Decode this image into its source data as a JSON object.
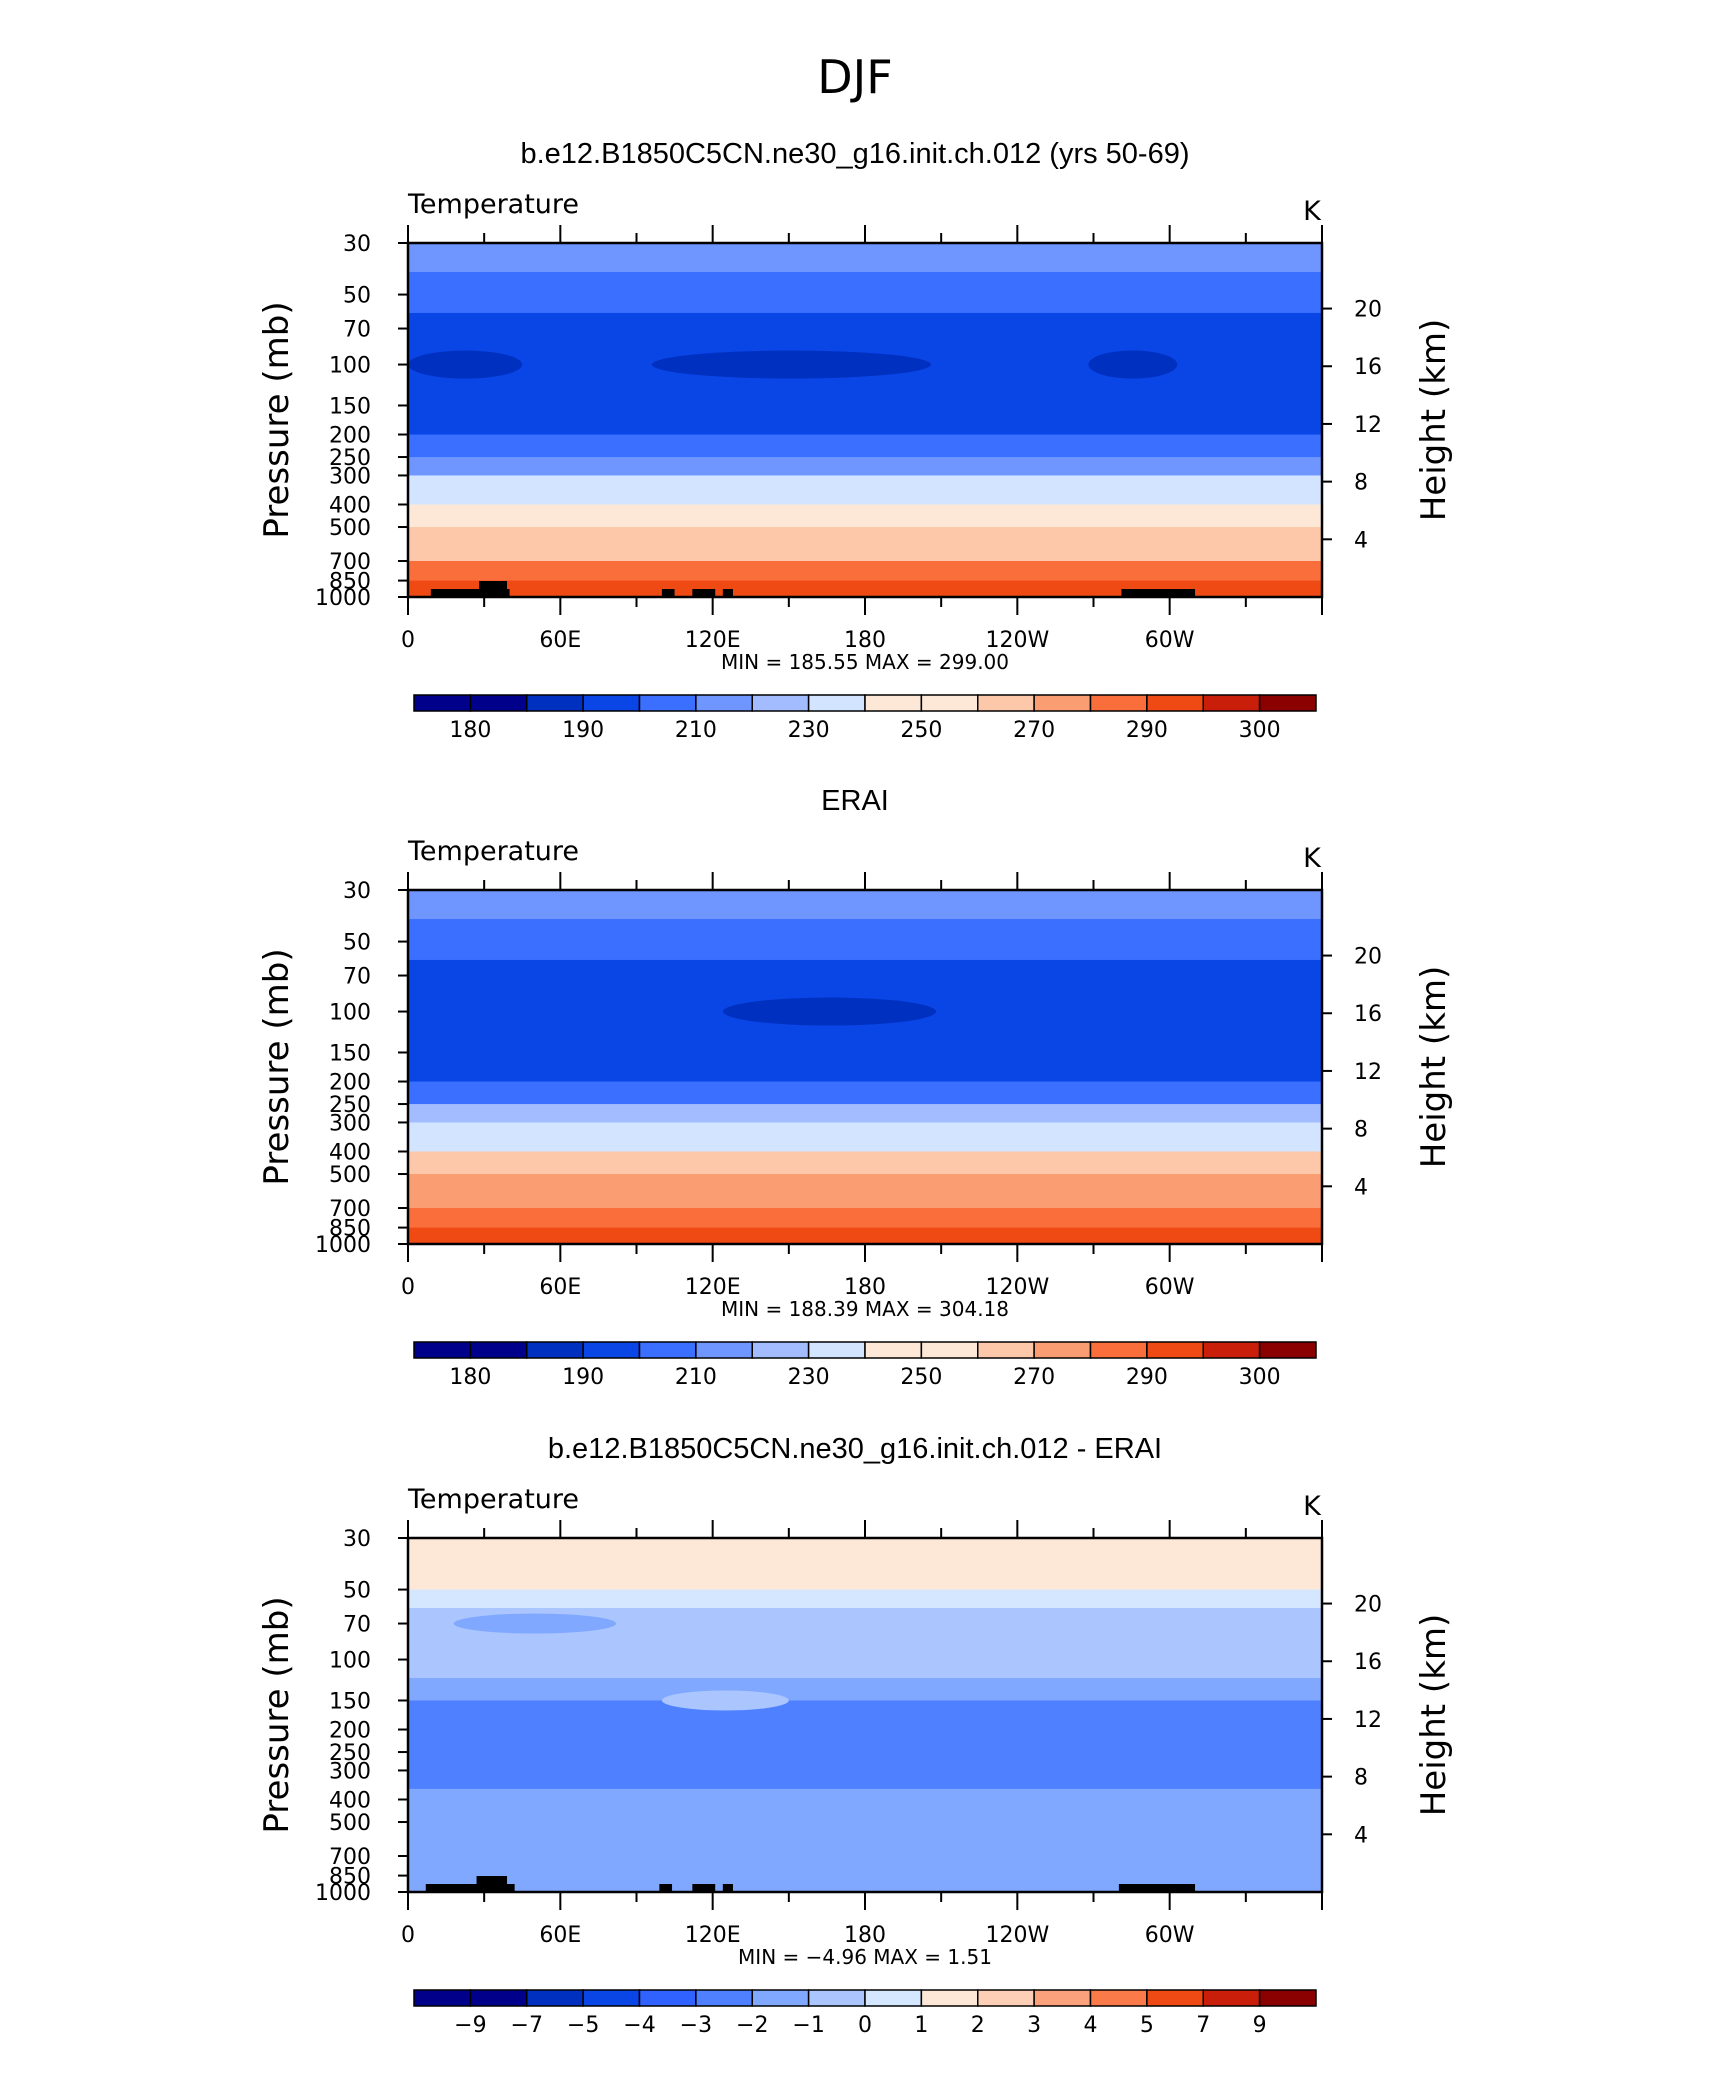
{
  "page_title": "DJF",
  "colors": {
    "temp_scale": [
      "#00008b",
      "#0030c0",
      "#0a45e6",
      "#3a6fff",
      "#6f96ff",
      "#a2bcff",
      "#d2e4ff",
      "#fde8d8",
      "#fdc8aa",
      "#fb9d72",
      "#fa6e3c",
      "#f04a14",
      "#c81e0a",
      "#8b0000"
    ],
    "diff_scale": [
      "#00008b",
      "#0030c0",
      "#0a45e6",
      "#2f62ff",
      "#4f80ff",
      "#81a8ff",
      "#abc6ff",
      "#d5e7ff",
      "#fde8d8",
      "#fccfb6",
      "#fba27c",
      "#fa7a4a",
      "#f04a14",
      "#c81e0a",
      "#8b0000"
    ],
    "terrain": "#000000"
  },
  "chart_data": [
    {
      "type": "heatmap",
      "title": "b.e12.B1850C5CN.ne30_g16.init.ch.012 (yrs 50-69)",
      "left_label": "Temperature",
      "right_label": "K",
      "ylabel": "Pressure (mb)",
      "ylabel2": "Height (km)",
      "x_ticks": [
        "0",
        "60E",
        "120E",
        "180",
        "120W",
        "60W"
      ],
      "x_tick_lon": [
        0,
        60,
        120,
        180,
        240,
        300
      ],
      "xlim": [
        0,
        360
      ],
      "y_ticks": [
        "30",
        "50",
        "70",
        "100",
        "150",
        "200",
        "250",
        "300",
        "400",
        "500",
        "700",
        "850",
        "1000"
      ],
      "y_tick_values": [
        30,
        50,
        70,
        100,
        150,
        200,
        250,
        300,
        400,
        500,
        700,
        850,
        1000
      ],
      "ylim": [
        1000,
        30
      ],
      "y2_ticks": [
        "20",
        "16",
        "12",
        "8",
        "4"
      ],
      "y2_tick_values": [
        20,
        16,
        12,
        8,
        4
      ],
      "stats": "MIN = 185.55   MAX = 299.00",
      "min": 185.55,
      "max": 299.0,
      "colorbar_labels": [
        "180",
        "190",
        "210",
        "230",
        "250",
        "270",
        "290",
        "300"
      ],
      "bands_by_pressure": [
        {
          "p": 30,
          "value": 215
        },
        {
          "p": 40,
          "value": 205
        },
        {
          "p": 60,
          "value": 195
        },
        {
          "p": 100,
          "value": 193
        },
        {
          "p": 150,
          "value": 200
        },
        {
          "p": 200,
          "value": 210
        },
        {
          "p": 250,
          "value": 220
        },
        {
          "p": 300,
          "value": 232
        },
        {
          "p": 400,
          "value": 248
        },
        {
          "p": 500,
          "value": 258
        },
        {
          "p": 700,
          "value": 275
        },
        {
          "p": 850,
          "value": 286
        },
        {
          "p": 1000,
          "value": 292
        }
      ],
      "features": [
        {
          "lon": [
            96,
            206
          ],
          "p": 100,
          "value": 187
        },
        {
          "lon": [
            0,
            45
          ],
          "p": 100,
          "value": 187
        },
        {
          "lon": [
            268,
            303
          ],
          "p": 100,
          "value": 187
        }
      ],
      "terrain_lon": [
        [
          9,
          40
        ],
        [
          28,
          39
        ],
        [
          100,
          105
        ],
        [
          112,
          121
        ],
        [
          124,
          128
        ],
        [
          281,
          310
        ]
      ]
    },
    {
      "type": "heatmap",
      "title": "ERAI",
      "left_label": "Temperature",
      "right_label": "K",
      "ylabel": "Pressure (mb)",
      "ylabel2": "Height (km)",
      "x_ticks": [
        "0",
        "60E",
        "120E",
        "180",
        "120W",
        "60W"
      ],
      "x_tick_lon": [
        0,
        60,
        120,
        180,
        240,
        300
      ],
      "xlim": [
        0,
        360
      ],
      "y_ticks": [
        "30",
        "50",
        "70",
        "100",
        "150",
        "200",
        "250",
        "300",
        "400",
        "500",
        "700",
        "850",
        "1000"
      ],
      "y_tick_values": [
        30,
        50,
        70,
        100,
        150,
        200,
        250,
        300,
        400,
        500,
        700,
        850,
        1000
      ],
      "ylim": [
        1000,
        30
      ],
      "y2_ticks": [
        "20",
        "16",
        "12",
        "8",
        "4"
      ],
      "y2_tick_values": [
        20,
        16,
        12,
        8,
        4
      ],
      "stats": "MIN = 188.39   MAX = 304.18",
      "min": 188.39,
      "max": 304.18,
      "colorbar_labels": [
        "180",
        "190",
        "210",
        "230",
        "250",
        "270",
        "290",
        "300"
      ],
      "bands_by_pressure": [
        {
          "p": 30,
          "value": 215
        },
        {
          "p": 40,
          "value": 205
        },
        {
          "p": 60,
          "value": 195
        },
        {
          "p": 100,
          "value": 193
        },
        {
          "p": 150,
          "value": 200
        },
        {
          "p": 200,
          "value": 210
        },
        {
          "p": 250,
          "value": 222
        },
        {
          "p": 300,
          "value": 240
        },
        {
          "p": 400,
          "value": 252
        },
        {
          "p": 500,
          "value": 262
        },
        {
          "p": 700,
          "value": 278
        },
        {
          "p": 850,
          "value": 290
        },
        {
          "p": 1000,
          "value": 298
        }
      ],
      "features": [
        {
          "lon": [
            124,
            208
          ],
          "p": 100,
          "value": 187
        }
      ],
      "terrain_lon": []
    },
    {
      "type": "heatmap",
      "title": "b.e12.B1850C5CN.ne30_g16.init.ch.012 - ERAI",
      "left_label": "Temperature",
      "right_label": "K",
      "ylabel": "Pressure (mb)",
      "ylabel2": "Height (km)",
      "x_ticks": [
        "0",
        "60E",
        "120E",
        "180",
        "120W",
        "60W"
      ],
      "x_tick_lon": [
        0,
        60,
        120,
        180,
        240,
        300
      ],
      "xlim": [
        0,
        360
      ],
      "y_ticks": [
        "30",
        "50",
        "70",
        "100",
        "150",
        "200",
        "250",
        "300",
        "400",
        "500",
        "700",
        "850",
        "1000"
      ],
      "y_tick_values": [
        30,
        50,
        70,
        100,
        150,
        200,
        250,
        300,
        400,
        500,
        700,
        850,
        1000
      ],
      "ylim": [
        1000,
        30
      ],
      "y2_ticks": [
        "20",
        "16",
        "12",
        "8",
        "4"
      ],
      "y2_tick_values": [
        20,
        16,
        12,
        8,
        4
      ],
      "stats": "MIN =   −4.96   MAX =     1.51",
      "min": -4.96,
      "max": 1.51,
      "colorbar_labels": [
        "−9",
        "−7",
        "−5",
        "−4",
        "−3",
        "−2",
        "−1",
        "0",
        "1",
        "2",
        "3",
        "4",
        "5",
        "7",
        "9"
      ],
      "bands_by_pressure": [
        {
          "p": 30,
          "value": 0.5
        },
        {
          "p": 50,
          "value": -0.5
        },
        {
          "p": 60,
          "value": -1.5
        },
        {
          "p": 120,
          "value": -2.5
        },
        {
          "p": 150,
          "value": -3.5
        },
        {
          "p": 320,
          "value": -3.5
        },
        {
          "p": 360,
          "value": -2.5
        },
        {
          "p": 700,
          "value": -2.5
        },
        {
          "p": 1000,
          "value": -1.5
        }
      ],
      "features": [
        {
          "lon": [
            18,
            82
          ],
          "p": 70,
          "value": -2.5
        },
        {
          "lon": [
            285,
            360
          ],
          "p": 100,
          "value": -1.5
        },
        {
          "lon": [
            100,
            150
          ],
          "p": 150,
          "value": -1.5
        }
      ],
      "terrain_lon": [
        [
          7,
          42
        ],
        [
          27,
          39
        ],
        [
          99,
          104
        ],
        [
          112,
          121
        ],
        [
          124,
          128
        ],
        [
          280,
          310
        ]
      ]
    }
  ]
}
